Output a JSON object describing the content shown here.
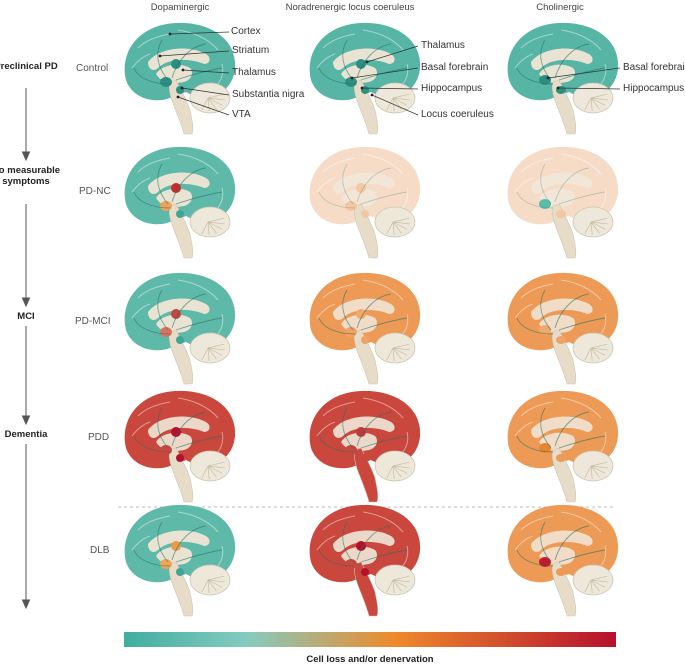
{
  "columns": [
    "Dopaminergic",
    "Noradrenergic locus coeruleus",
    "Cholinergic"
  ],
  "stages": [
    {
      "label": "Preclinical PD"
    },
    {
      "label": "No measurable symptoms"
    },
    {
      "label": "MCI"
    },
    {
      "label": "Dementia"
    }
  ],
  "rows": [
    "Control",
    "PD-NC",
    "PD-MCI",
    "PDD",
    "DLB"
  ],
  "annotations": {
    "dopaminergic": [
      "Cortex",
      "Striatum",
      "Thalamus",
      "Substantia nigra",
      "VTA"
    ],
    "noradrenergic": [
      "Thalamus",
      "Basal forebrain",
      "Hippocampus",
      "Locus coeruleus"
    ],
    "cholinergic": [
      "Basal forebrain",
      "Hippocampus"
    ]
  },
  "scale": {
    "title": "Cell loss and/or denervation",
    "colors": [
      "#3fae9f",
      "#85cbbf",
      "#ee8a2c",
      "#b5102d"
    ]
  },
  "palette": {
    "teal": "#56b5a5",
    "teal_light": "#9fd6cc",
    "peach": "#f6dcc7",
    "orange_light": "#f3b07a",
    "orange": "#ec9244",
    "red_light": "#d97a63",
    "red": "#c9473d",
    "crimson": "#b5102d",
    "inner": "#ece5d6",
    "brainstem": "#e6dcc8"
  },
  "brains": [
    {
      "row": 0,
      "col": 0,
      "cortex": "#56b5a5",
      "inner": "#e9e3d3",
      "nuclei": [
        "#2c8f82",
        "#2c8f82",
        "#2c8f82"
      ]
    },
    {
      "row": 0,
      "col": 1,
      "cortex": "#56b5a5",
      "inner": "#e9e3d3",
      "nuclei": [
        "#2c8f82",
        "#2c8f82",
        "#2c8f82"
      ]
    },
    {
      "row": 0,
      "col": 2,
      "cortex": "#56b5a5",
      "inner": "#e9e3d3",
      "nuclei": [
        "#2c8f82",
        "#2c8f82"
      ]
    },
    {
      "row": 1,
      "col": 0,
      "cortex": "#5fb9a9",
      "inner": "#e9e3d3",
      "nuclei": [
        "#c92a2a",
        "#f1a15a",
        "#3fa595"
      ]
    },
    {
      "row": 1,
      "col": 1,
      "cortex": "#f6dcc7",
      "inner": "#f1e6d8",
      "nuclei": [
        "#f4c8a3",
        "#f2c7a2",
        "#f2c7a2"
      ]
    },
    {
      "row": 1,
      "col": 2,
      "cortex": "#f6dcc7",
      "inner": "#f1e6d8",
      "nuclei": [
        "#5bbcaa",
        "#f2c7a2"
      ]
    },
    {
      "row": 2,
      "col": 0,
      "cortex": "#5fb9a9",
      "inner": "#e9e3d3",
      "nuclei": [
        "#c0483e",
        "#d8735e",
        "#3fa595"
      ]
    },
    {
      "row": 2,
      "col": 1,
      "cortex": "#ec9a55",
      "inner": "#f0dcc7",
      "nuclei": [
        "#f0a86b",
        "#efa265",
        "#efa265"
      ]
    },
    {
      "row": 2,
      "col": 2,
      "cortex": "#ec9a55",
      "inner": "#f0dcc7",
      "nuclei": [
        "#f0a86b",
        "#efa265"
      ]
    },
    {
      "row": 3,
      "col": 0,
      "cortex": "#c9473d",
      "inner": "#ecd8c8",
      "nuclei": [
        "#b5102d",
        "#c9473d",
        "#b5102d"
      ]
    },
    {
      "row": 3,
      "col": 1,
      "cortex": "#c9473d",
      "inner": "#ecd8c8",
      "nuclei": [
        "#c0383c",
        "#c9473d",
        "#c9473d"
      ]
    },
    {
      "row": 3,
      "col": 2,
      "cortex": "#ec9a55",
      "inner": "#f0dcc7",
      "nuclei": [
        "#e8842f",
        "#ee9a55"
      ]
    },
    {
      "row": 4,
      "col": 0,
      "cortex": "#5fb9a9",
      "inner": "#e9e3d3",
      "nuclei": [
        "#ef9a4a",
        "#f1a55a",
        "#3fa595"
      ]
    },
    {
      "row": 4,
      "col": 1,
      "cortex": "#c9473d",
      "inner": "#ecd8c8",
      "nuclei": [
        "#b5102d",
        "#c9473d",
        "#b5102d"
      ]
    },
    {
      "row": 4,
      "col": 2,
      "cortex": "#ec9a55",
      "inner": "#f0dcc7",
      "nuclei": [
        "#c11c2d",
        "#ee9a55"
      ]
    }
  ]
}
